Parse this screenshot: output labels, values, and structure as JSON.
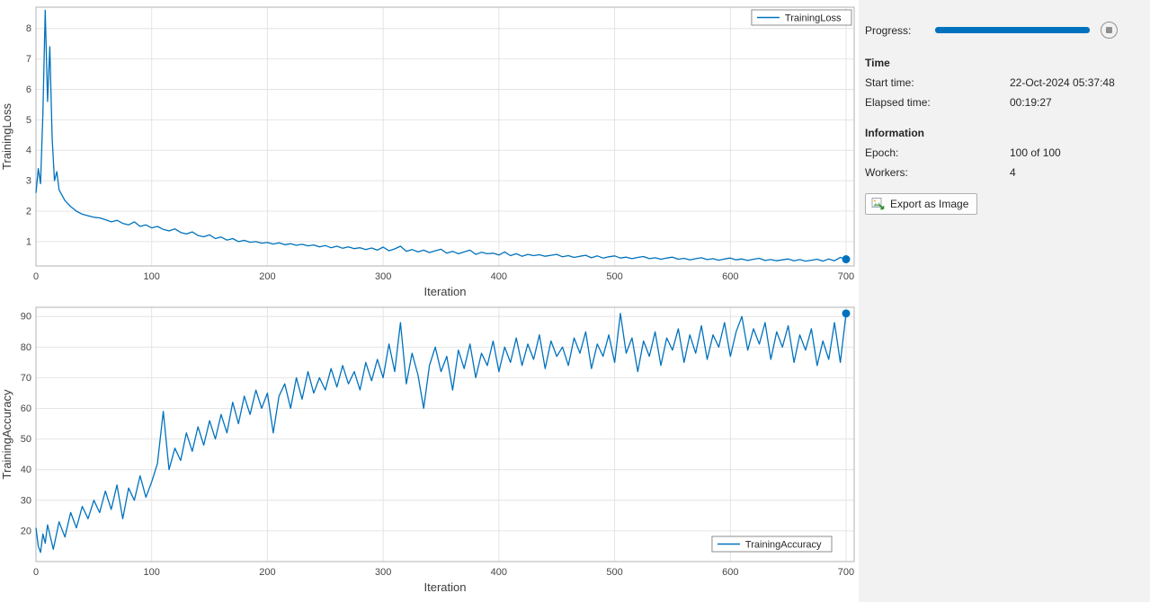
{
  "panel": {
    "progress_label": "Progress:",
    "progress_percent": 100,
    "progress_color": "#0072BD",
    "time": {
      "heading": "Time",
      "start_time_label": "Start time:",
      "start_time_value": "22-Oct-2024 05:37:48",
      "elapsed_time_label": "Elapsed time:",
      "elapsed_time_value": "00:19:27"
    },
    "information": {
      "heading": "Information",
      "epoch_label": "Epoch:",
      "epoch_value": "100 of 100",
      "workers_label": "Workers:",
      "workers_value": "4"
    },
    "export_button_label": "Export as Image",
    "icons": {
      "stop": "stop-square-icon",
      "export": "export-image-icon"
    }
  },
  "chart_data": [
    {
      "type": "line",
      "title": "",
      "xlabel": "Iteration",
      "ylabel": "TrainingLoss",
      "legend": [
        "TrainingLoss"
      ],
      "legend_pos": "northeast",
      "grid": true,
      "line_color": "#0072BD",
      "xlim": [
        0,
        707
      ],
      "ylim": [
        0.2,
        8.7
      ],
      "xticks": [
        0,
        100,
        200,
        300,
        400,
        500,
        600,
        700
      ],
      "yticks": [
        1,
        2,
        3,
        4,
        5,
        6,
        7,
        8
      ],
      "series": [
        {
          "name": "TrainingLoss",
          "x": [
            0,
            2,
            4,
            6,
            8,
            10,
            12,
            14,
            16,
            18,
            20,
            25,
            30,
            35,
            40,
            45,
            50,
            55,
            60,
            65,
            70,
            75,
            80,
            85,
            90,
            95,
            100,
            105,
            110,
            115,
            120,
            125,
            130,
            135,
            140,
            145,
            150,
            155,
            160,
            165,
            170,
            175,
            180,
            185,
            190,
            195,
            200,
            205,
            210,
            215,
            220,
            225,
            230,
            235,
            240,
            245,
            250,
            255,
            260,
            265,
            270,
            275,
            280,
            285,
            290,
            295,
            300,
            305,
            310,
            315,
            320,
            325,
            330,
            335,
            340,
            345,
            350,
            355,
            360,
            365,
            370,
            375,
            380,
            385,
            390,
            395,
            400,
            405,
            410,
            415,
            420,
            425,
            430,
            435,
            440,
            445,
            450,
            455,
            460,
            465,
            470,
            475,
            480,
            485,
            490,
            495,
            500,
            505,
            510,
            515,
            520,
            525,
            530,
            535,
            540,
            545,
            550,
            555,
            560,
            565,
            570,
            575,
            580,
            585,
            590,
            595,
            600,
            605,
            610,
            615,
            620,
            625,
            630,
            635,
            640,
            645,
            650,
            655,
            660,
            665,
            670,
            675,
            680,
            685,
            690,
            695,
            700
          ],
          "y": [
            2.6,
            3.4,
            2.9,
            5.2,
            8.6,
            5.6,
            7.4,
            4.4,
            3.0,
            3.3,
            2.7,
            2.35,
            2.15,
            2.0,
            1.9,
            1.85,
            1.8,
            1.78,
            1.72,
            1.65,
            1.7,
            1.6,
            1.55,
            1.65,
            1.5,
            1.55,
            1.45,
            1.5,
            1.4,
            1.35,
            1.42,
            1.3,
            1.25,
            1.32,
            1.2,
            1.16,
            1.22,
            1.1,
            1.15,
            1.05,
            1.1,
            1.0,
            1.04,
            0.98,
            1.0,
            0.95,
            0.97,
            0.92,
            0.96,
            0.9,
            0.93,
            0.88,
            0.91,
            0.86,
            0.89,
            0.83,
            0.87,
            0.8,
            0.85,
            0.78,
            0.83,
            0.77,
            0.8,
            0.74,
            0.79,
            0.72,
            0.82,
            0.7,
            0.76,
            0.85,
            0.68,
            0.74,
            0.66,
            0.72,
            0.64,
            0.7,
            0.75,
            0.62,
            0.68,
            0.6,
            0.66,
            0.72,
            0.58,
            0.65,
            0.6,
            0.62,
            0.56,
            0.66,
            0.54,
            0.6,
            0.52,
            0.58,
            0.54,
            0.57,
            0.52,
            0.55,
            0.58,
            0.5,
            0.54,
            0.48,
            0.52,
            0.55,
            0.47,
            0.53,
            0.46,
            0.5,
            0.53,
            0.46,
            0.49,
            0.44,
            0.48,
            0.51,
            0.44,
            0.47,
            0.42,
            0.46,
            0.49,
            0.42,
            0.45,
            0.4,
            0.44,
            0.47,
            0.41,
            0.44,
            0.39,
            0.43,
            0.46,
            0.4,
            0.43,
            0.38,
            0.42,
            0.45,
            0.38,
            0.41,
            0.37,
            0.4,
            0.43,
            0.37,
            0.41,
            0.36,
            0.39,
            0.42,
            0.36,
            0.43,
            0.37,
            0.48,
            0.42
          ]
        }
      ]
    },
    {
      "type": "line",
      "title": "",
      "xlabel": "Iteration",
      "ylabel": "TrainingAccuracy",
      "legend": [
        "TrainingAccuracy"
      ],
      "legend_pos": "southeast",
      "grid": true,
      "line_color": "#0072BD",
      "xlim": [
        0,
        707
      ],
      "ylim": [
        10,
        93
      ],
      "xticks": [
        0,
        100,
        200,
        300,
        400,
        500,
        600,
        700
      ],
      "yticks": [
        20,
        30,
        40,
        50,
        60,
        70,
        80,
        90
      ],
      "series": [
        {
          "name": "TrainingAccuracy",
          "x": [
            0,
            2,
            4,
            6,
            8,
            10,
            15,
            20,
            25,
            30,
            35,
            40,
            45,
            50,
            55,
            60,
            65,
            70,
            75,
            80,
            85,
            90,
            95,
            100,
            105,
            110,
            115,
            120,
            125,
            130,
            135,
            140,
            145,
            150,
            155,
            160,
            165,
            170,
            175,
            180,
            185,
            190,
            195,
            200,
            205,
            210,
            215,
            220,
            225,
            230,
            235,
            240,
            245,
            250,
            255,
            260,
            265,
            270,
            275,
            280,
            285,
            290,
            295,
            300,
            305,
            310,
            315,
            320,
            325,
            330,
            335,
            340,
            345,
            350,
            355,
            360,
            365,
            370,
            375,
            380,
            385,
            390,
            395,
            400,
            405,
            410,
            415,
            420,
            425,
            430,
            435,
            440,
            445,
            450,
            455,
            460,
            465,
            470,
            475,
            480,
            485,
            490,
            495,
            500,
            505,
            510,
            515,
            520,
            525,
            530,
            535,
            540,
            545,
            550,
            555,
            560,
            565,
            570,
            575,
            580,
            585,
            590,
            595,
            600,
            605,
            610,
            615,
            620,
            625,
            630,
            635,
            640,
            645,
            650,
            655,
            660,
            665,
            670,
            675,
            680,
            685,
            690,
            695,
            700
          ],
          "y": [
            21,
            15,
            13,
            19,
            16,
            22,
            14,
            23,
            18,
            26,
            21,
            28,
            24,
            30,
            26,
            33,
            27,
            35,
            24,
            34,
            30,
            38,
            31,
            36,
            42,
            59,
            40,
            47,
            43,
            52,
            46,
            54,
            48,
            56,
            50,
            58,
            52,
            62,
            55,
            64,
            58,
            66,
            60,
            65,
            52,
            64,
            68,
            60,
            70,
            63,
            72,
            65,
            70,
            66,
            73,
            67,
            74,
            68,
            72,
            66,
            75,
            69,
            76,
            70,
            81,
            72,
            88,
            68,
            78,
            71,
            60,
            74,
            80,
            72,
            77,
            66,
            79,
            73,
            81,
            70,
            78,
            74,
            82,
            72,
            80,
            75,
            83,
            74,
            81,
            76,
            84,
            73,
            82,
            77,
            80,
            74,
            83,
            78,
            85,
            73,
            81,
            77,
            84,
            75,
            91,
            78,
            83,
            72,
            82,
            77,
            85,
            74,
            83,
            79,
            86,
            75,
            84,
            78,
            87,
            76,
            84,
            80,
            88,
            77,
            85,
            90,
            79,
            86,
            81,
            88,
            76,
            85,
            80,
            87,
            75,
            84,
            79,
            86,
            74,
            82,
            76,
            88,
            75,
            91
          ]
        }
      ]
    }
  ]
}
